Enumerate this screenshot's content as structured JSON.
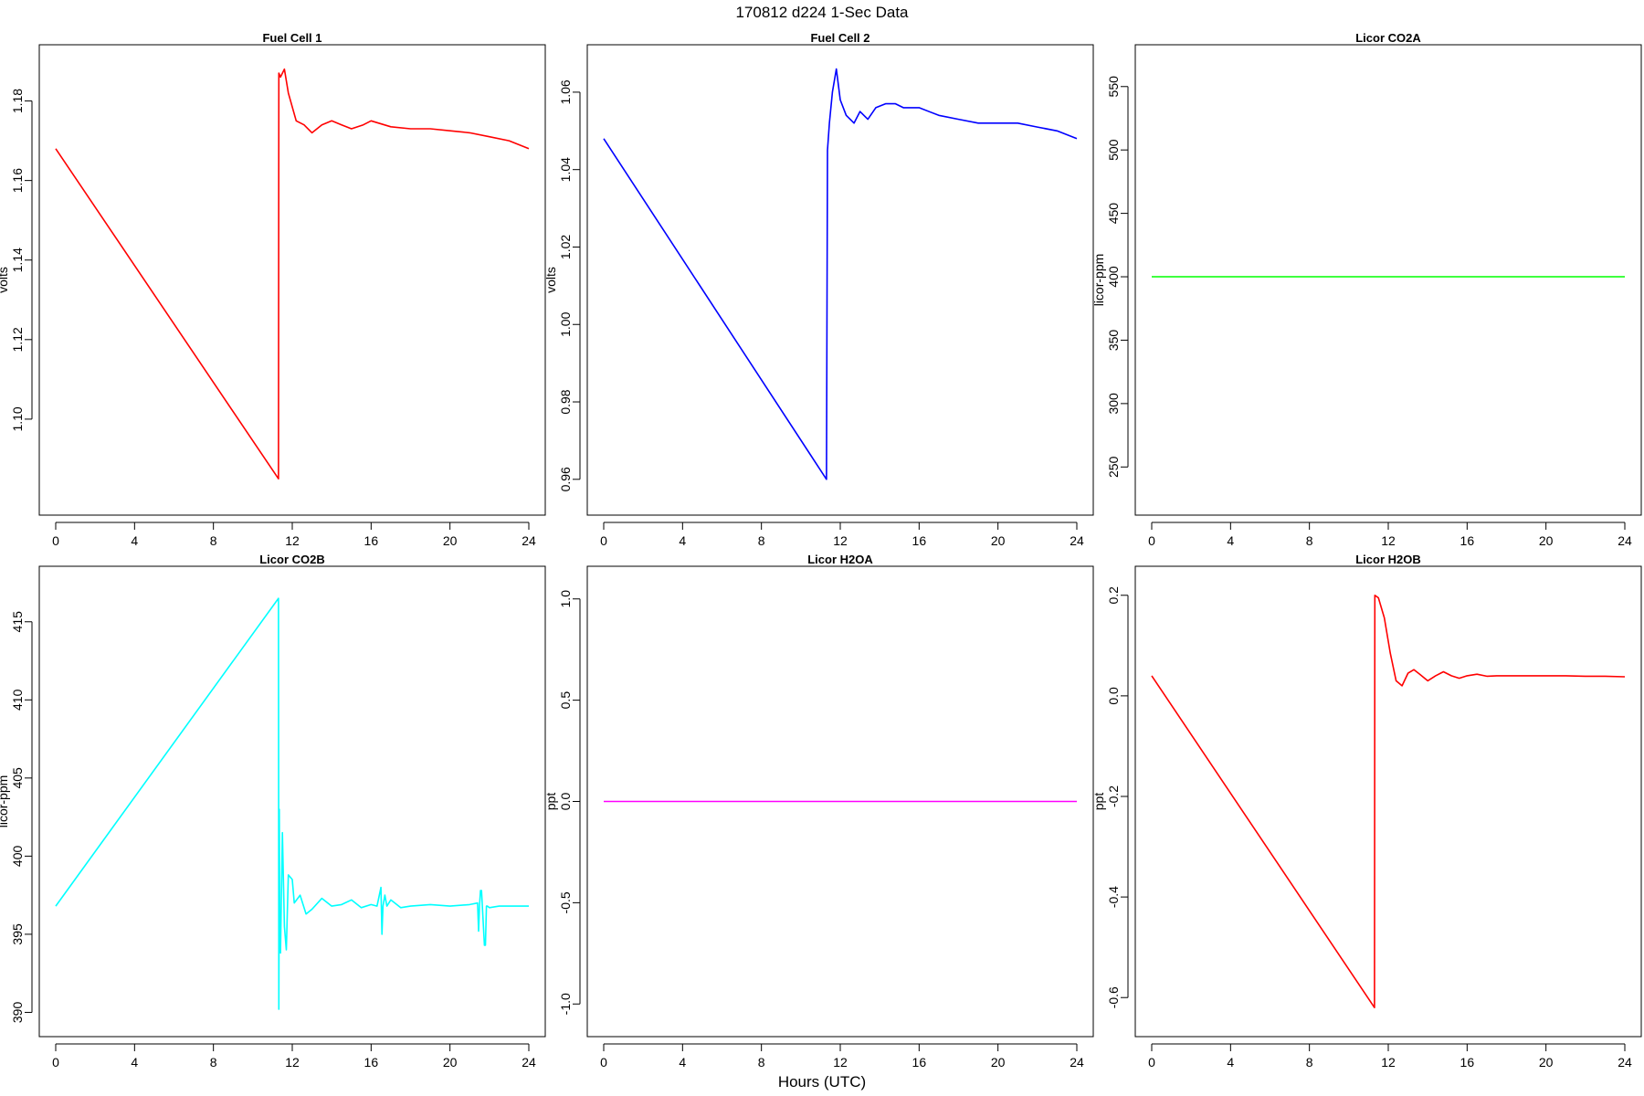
{
  "figure": {
    "title": "170812   d224   1-Sec Data",
    "xlabel": "Hours (UTC)"
  },
  "chart_data": [
    {
      "type": "line",
      "title": "Fuel Cell 1",
      "ylabel": "volts",
      "xlim": [
        0,
        24
      ],
      "ylim": [
        1.08,
        1.19
      ],
      "xticks": [
        0,
        4,
        8,
        12,
        16,
        20,
        24
      ],
      "yticks": [
        1.1,
        1.12,
        1.14,
        1.16,
        1.18
      ],
      "ytick_labels": [
        "1.10",
        "1.12",
        "1.14",
        "1.16",
        "1.18"
      ],
      "color": "#ff0000",
      "series": [
        {
          "x": [
            0,
            11.3,
            11.32,
            11.4,
            11.6,
            11.8,
            12.2,
            12.6,
            13.0,
            13.5,
            14.0,
            14.5,
            15.0,
            15.6,
            16.0,
            17.0,
            18.0,
            19.0,
            20.0,
            21.0,
            22.0,
            23.0,
            24.0
          ],
          "y": [
            1.168,
            1.085,
            1.187,
            1.186,
            1.188,
            1.182,
            1.175,
            1.174,
            1.172,
            1.174,
            1.175,
            1.174,
            1.173,
            1.174,
            1.175,
            1.1735,
            1.173,
            1.173,
            1.1725,
            1.172,
            1.171,
            1.17,
            1.168
          ]
        }
      ]
    },
    {
      "type": "line",
      "title": "Fuel Cell 2",
      "ylabel": "volts",
      "xlim": [
        0,
        24
      ],
      "ylim": [
        0.955,
        1.068
      ],
      "xticks": [
        0,
        4,
        8,
        12,
        16,
        20,
        24
      ],
      "yticks": [
        0.96,
        0.98,
        1.0,
        1.02,
        1.04,
        1.06
      ],
      "ytick_labels": [
        "0.96",
        "0.98",
        "1.00",
        "1.02",
        "1.04",
        "1.06"
      ],
      "color": "#0000ff",
      "series": [
        {
          "x": [
            0,
            11.3,
            11.35,
            11.45,
            11.6,
            11.8,
            12.0,
            12.3,
            12.7,
            13.0,
            13.4,
            13.8,
            14.3,
            14.8,
            15.2,
            16.0,
            17.0,
            18.0,
            19.0,
            20.0,
            21.0,
            22.0,
            23.0,
            24.0
          ],
          "y": [
            1.048,
            0.96,
            1.045,
            1.052,
            1.06,
            1.066,
            1.058,
            1.054,
            1.052,
            1.055,
            1.053,
            1.056,
            1.057,
            1.057,
            1.056,
            1.056,
            1.054,
            1.053,
            1.052,
            1.052,
            1.052,
            1.051,
            1.05,
            1.048
          ]
        }
      ]
    },
    {
      "type": "line",
      "title": "Licor CO2A",
      "ylabel": "licor-ppm",
      "xlim": [
        0,
        24
      ],
      "ylim": [
        225,
        570
      ],
      "xticks": [
        0,
        4,
        8,
        12,
        16,
        20,
        24
      ],
      "yticks": [
        250,
        300,
        350,
        400,
        450,
        500,
        550
      ],
      "ytick_labels": [
        "250",
        "300",
        "350",
        "400",
        "450",
        "500",
        "550"
      ],
      "color": "#00ff00",
      "series": [
        {
          "x": [
            0,
            24
          ],
          "y": [
            400,
            400
          ]
        }
      ]
    },
    {
      "type": "line",
      "title": "Licor CO2B",
      "ylabel": "licor-ppm",
      "xlim": [
        0,
        24
      ],
      "ylim": [
        389.5,
        417.5
      ],
      "xticks": [
        0,
        4,
        8,
        12,
        16,
        20,
        24
      ],
      "yticks": [
        390,
        395,
        400,
        405,
        410,
        415
      ],
      "ytick_labels": [
        "390",
        "395",
        "400",
        "405",
        "410",
        "415"
      ],
      "color": "#00ffff",
      "series": [
        {
          "x": [
            0,
            11.3,
            11.32,
            11.34,
            11.36,
            11.4,
            11.5,
            11.6,
            11.7,
            11.8,
            12.0,
            12.1,
            12.4,
            12.7,
            13.0,
            13.5,
            14.0,
            14.5,
            15.0,
            15.5,
            16.0,
            16.3,
            16.5,
            16.55,
            16.6,
            16.7,
            16.8,
            17.0,
            17.5,
            18.0,
            19.0,
            20.0,
            21.0,
            21.4,
            21.45,
            21.5,
            21.55,
            21.6,
            21.75,
            21.8,
            21.85,
            21.9,
            22.0,
            22.5,
            23.0,
            24.0
          ],
          "y": [
            396.8,
            416.5,
            390.2,
            403.0,
            396.0,
            393.8,
            401.5,
            395.5,
            394.0,
            398.8,
            398.5,
            397.0,
            397.5,
            396.3,
            396.6,
            397.3,
            396.8,
            396.9,
            397.2,
            396.7,
            396.9,
            396.8,
            398.0,
            395.0,
            396.8,
            397.5,
            396.8,
            397.2,
            396.7,
            396.8,
            396.9,
            396.8,
            396.9,
            397.0,
            395.2,
            396.8,
            397.8,
            397.8,
            394.3,
            394.3,
            396.8,
            396.8,
            396.7,
            396.8,
            396.8,
            396.8
          ]
        }
      ]
    },
    {
      "type": "line",
      "title": "Licor H2OA",
      "ylabel": "ppt",
      "xlim": [
        0,
        24
      ],
      "ylim": [
        -1.08,
        1.08
      ],
      "xticks": [
        0,
        4,
        8,
        12,
        16,
        20,
        24
      ],
      "yticks": [
        -1.0,
        -0.5,
        0.0,
        0.5,
        1.0
      ],
      "ytick_labels": [
        "-1.0",
        "-0.5",
        "0.0",
        "0.5",
        "1.0"
      ],
      "color": "#ff00ff",
      "series": [
        {
          "x": [
            0,
            24
          ],
          "y": [
            0,
            0
          ]
        }
      ]
    },
    {
      "type": "line",
      "title": "Licor H2OB",
      "ylabel": "ppt",
      "xlim": [
        0,
        24
      ],
      "ylim": [
        -0.645,
        0.225
      ],
      "xticks": [
        0,
        4,
        8,
        12,
        16,
        20,
        24
      ],
      "yticks": [
        -0.6,
        -0.4,
        -0.2,
        0.0,
        0.2
      ],
      "ytick_labels": [
        "-0.6",
        "-0.4",
        "-0.2",
        "0.0",
        "0.2"
      ],
      "color": "#ff0000",
      "series": [
        {
          "x": [
            0,
            11.3,
            11.32,
            11.5,
            11.8,
            12.1,
            12.4,
            12.7,
            13.0,
            13.3,
            13.6,
            14.0,
            14.4,
            14.8,
            15.2,
            15.6,
            16.0,
            16.5,
            17.0,
            17.5,
            18.0,
            19.0,
            20.0,
            21.0,
            22.0,
            23.0,
            24.0
          ],
          "y": [
            0.04,
            -0.62,
            0.2,
            0.195,
            0.155,
            0.085,
            0.03,
            0.02,
            0.045,
            0.052,
            0.043,
            0.03,
            0.04,
            0.048,
            0.04,
            0.035,
            0.04,
            0.043,
            0.039,
            0.04,
            0.04,
            0.04,
            0.04,
            0.04,
            0.039,
            0.039,
            0.038
          ]
        }
      ]
    }
  ]
}
